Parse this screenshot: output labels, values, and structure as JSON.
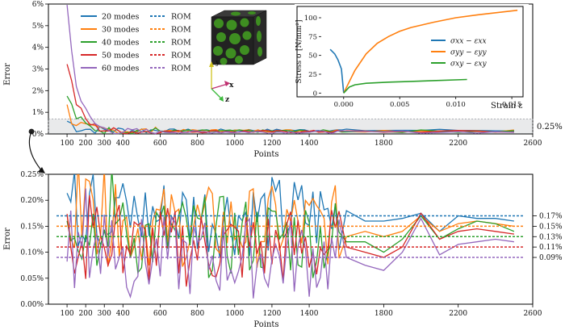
{
  "chart_data": [
    {
      "type": "line",
      "xlabel": "Points",
      "ylabel": "Error",
      "xlim": [
        0,
        2600
      ],
      "ylim": [
        0,
        6
      ],
      "xticks": [
        "100",
        "200",
        "300",
        "400",
        "600",
        "800",
        "1000",
        "1200",
        "1400",
        "1800",
        "2200",
        "2600"
      ],
      "yticks": [
        "0%",
        "1%",
        "2%",
        "3%",
        "4%",
        "5%",
        "6%"
      ],
      "band_label": "0.25%",
      "band_range": [
        0,
        0.62
      ],
      "legend_position": "top-left",
      "legend_header_rom": "ROM",
      "series": [
        {
          "name": "20 modes",
          "color": "#1f77b4"
        },
        {
          "name": "30 modes",
          "color": "#ff7f0e"
        },
        {
          "name": "40 modes",
          "color": "#2ca02c"
        },
        {
          "name": "50 modes",
          "color": "#d62728"
        },
        {
          "name": "60 modes",
          "color": "#9467bd"
        }
      ],
      "rom_label": "ROM",
      "cube_axes": [
        "y",
        "x",
        "z"
      ]
    },
    {
      "type": "line",
      "xlabel": "Strain ε",
      "ylabel": "Stress σ [N/mm²]",
      "xlim": [
        -0.002,
        0.016
      ],
      "ylim": [
        -5,
        115
      ],
      "xticks": [
        "0.000",
        "0.005",
        "0.010",
        "0.015"
      ],
      "yticks": [
        "0",
        "25",
        "50",
        "75",
        "100"
      ],
      "legend_position": "center-right",
      "series": [
        {
          "name": "σxx − εxx",
          "color": "#1f77b4",
          "x": [
            -0.0012,
            -0.0008,
            -0.0005,
            -0.0002,
            0.0
          ],
          "y": [
            58,
            52,
            44,
            32,
            0
          ]
        },
        {
          "name": "σyy − εyy",
          "color": "#ff7f0e",
          "x": [
            0.0,
            0.0005,
            0.001,
            0.002,
            0.003,
            0.004,
            0.005,
            0.006,
            0.008,
            0.01,
            0.012,
            0.0155
          ],
          "y": [
            0,
            15,
            30,
            52,
            66,
            75,
            82,
            87,
            94,
            100,
            104,
            110
          ]
        },
        {
          "name": "σxy − εxy",
          "color": "#2ca02c",
          "x": [
            0.0,
            0.0005,
            0.001,
            0.002,
            0.004,
            0.006,
            0.008,
            0.011
          ],
          "y": [
            0,
            8,
            11,
            13,
            14.5,
            15.5,
            16.5,
            18
          ]
        }
      ]
    },
    {
      "type": "line",
      "xlabel": "Points",
      "ylabel": "Error",
      "xlim": [
        0,
        2600
      ],
      "ylim": [
        0,
        0.25
      ],
      "xticks": [
        "100",
        "200",
        "300",
        "400",
        "600",
        "800",
        "1000",
        "1200",
        "1400",
        "1800",
        "2200",
        "2600"
      ],
      "yticks": [
        "0.00%",
        "0.05%",
        "0.10%",
        "0.15%",
        "0.20%",
        "0.25%"
      ],
      "rom_lines": [
        {
          "series": "20 modes",
          "value": 0.17,
          "label": "0.17%"
        },
        {
          "series": "30 modes",
          "value": 0.15,
          "label": "0.15%"
        },
        {
          "series": "40 modes",
          "value": 0.13,
          "label": "0.13%"
        },
        {
          "series": "50 modes",
          "value": 0.11,
          "label": "0.11%"
        },
        {
          "series": "60 modes",
          "value": 0.09,
          "label": "0.09%"
        }
      ],
      "x_points": [
        1600,
        1700,
        1800,
        1900,
        2000,
        2100,
        2200,
        2300,
        2400,
        2500
      ],
      "series": [
        {
          "name": "20 modes",
          "values": [
            0.18,
            0.16,
            0.16,
            0.165,
            0.175,
            0.14,
            0.17,
            0.165,
            0.165,
            0.16
          ]
        },
        {
          "name": "30 modes",
          "values": [
            0.13,
            0.14,
            0.13,
            0.14,
            0.17,
            0.14,
            0.155,
            0.16,
            0.155,
            0.15
          ]
        },
        {
          "name": "40 modes",
          "values": [
            0.12,
            0.12,
            0.1,
            0.125,
            0.17,
            0.125,
            0.145,
            0.16,
            0.155,
            0.14
          ]
        },
        {
          "name": "50 modes",
          "values": [
            0.11,
            0.1,
            0.09,
            0.11,
            0.175,
            0.125,
            0.14,
            0.145,
            0.14,
            0.135
          ]
        },
        {
          "name": "60 modes",
          "values": [
            0.09,
            0.075,
            0.065,
            0.1,
            0.165,
            0.095,
            0.115,
            0.12,
            0.125,
            0.12
          ]
        }
      ]
    }
  ]
}
